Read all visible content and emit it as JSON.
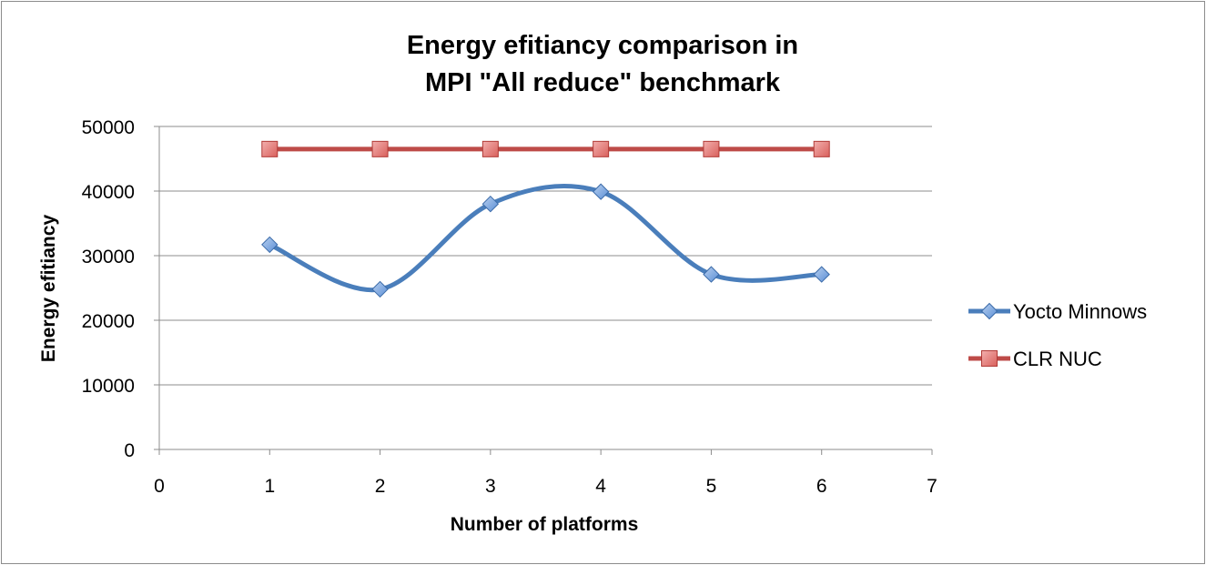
{
  "chart_data": {
    "type": "line",
    "title_lines": [
      "Energy efitiancy comparison in",
      "MPI \"All reduce\" benchmark"
    ],
    "xlabel": "Number of platforms",
    "ylabel": "Energy efitiancy",
    "xlim": [
      0,
      7
    ],
    "ylim": [
      0,
      50000
    ],
    "x_ticks": [
      "0",
      "1",
      "2",
      "3",
      "4",
      "5",
      "6",
      "7"
    ],
    "y_ticks": [
      "0",
      "10000",
      "20000",
      "30000",
      "40000",
      "50000"
    ],
    "grid": "horizontal",
    "legend_position": "right",
    "series": [
      {
        "name": "Yocto Minnows",
        "color": "#4a7ebb",
        "marker": "diamond",
        "smooth": true,
        "x": [
          1,
          2,
          3,
          4,
          5,
          6
        ],
        "y": [
          31700,
          24800,
          38000,
          39900,
          27100,
          27100
        ]
      },
      {
        "name": "CLR NUC",
        "color": "#be4b48",
        "marker": "square",
        "smooth": false,
        "x": [
          1,
          2,
          3,
          4,
          5,
          6
        ],
        "y": [
          46500,
          46500,
          46500,
          46500,
          46500,
          46500
        ]
      }
    ]
  }
}
